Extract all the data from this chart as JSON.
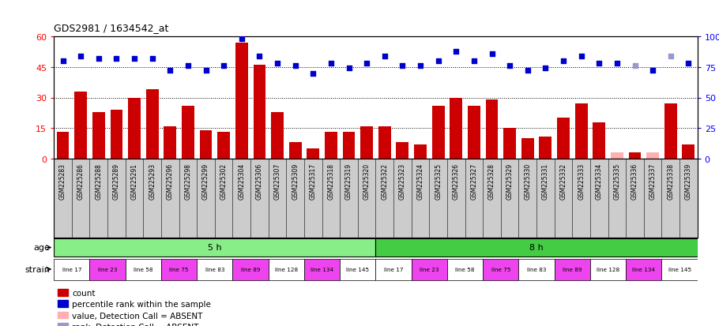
{
  "title": "GDS2981 / 1634542_at",
  "samples": [
    "GSM225283",
    "GSM225286",
    "GSM225288",
    "GSM225289",
    "GSM225291",
    "GSM225293",
    "GSM225296",
    "GSM225298",
    "GSM225299",
    "GSM225302",
    "GSM225304",
    "GSM225306",
    "GSM225307",
    "GSM225309",
    "GSM225317",
    "GSM225318",
    "GSM225319",
    "GSM225320",
    "GSM225322",
    "GSM225323",
    "GSM225324",
    "GSM225325",
    "GSM225326",
    "GSM225327",
    "GSM225328",
    "GSM225329",
    "GSM225330",
    "GSM225331",
    "GSM225332",
    "GSM225333",
    "GSM225334",
    "GSM225335",
    "GSM225336",
    "GSM225337",
    "GSM225338",
    "GSM225339"
  ],
  "counts": [
    13,
    33,
    23,
    24,
    30,
    34,
    16,
    26,
    14,
    13,
    57,
    46,
    23,
    8,
    5,
    13,
    13,
    16,
    16,
    8,
    7,
    26,
    30,
    26,
    29,
    15,
    10,
    11,
    20,
    27,
    18,
    3,
    3,
    3,
    27,
    7
  ],
  "absent_count": [
    false,
    false,
    false,
    false,
    false,
    false,
    false,
    false,
    false,
    false,
    false,
    false,
    false,
    false,
    false,
    false,
    false,
    false,
    false,
    false,
    false,
    false,
    false,
    false,
    false,
    false,
    false,
    false,
    false,
    false,
    false,
    true,
    false,
    true,
    false,
    false
  ],
  "percentile_ranks": [
    80,
    84,
    82,
    82,
    82,
    82,
    72,
    76,
    72,
    76,
    98,
    84,
    78,
    76,
    70,
    78,
    74,
    78,
    84,
    76,
    76,
    80,
    88,
    80,
    86,
    76,
    72,
    74,
    80,
    84,
    78,
    78,
    76,
    72,
    84,
    78
  ],
  "absent_rank": [
    false,
    false,
    false,
    false,
    false,
    false,
    false,
    false,
    false,
    false,
    false,
    false,
    false,
    false,
    false,
    false,
    false,
    false,
    false,
    false,
    false,
    false,
    false,
    false,
    false,
    false,
    false,
    false,
    false,
    false,
    false,
    false,
    true,
    false,
    true,
    false
  ],
  "strain_groups": [
    {
      "label": "line 17",
      "start": 0,
      "end": 2,
      "color": "#ffffff"
    },
    {
      "label": "line 23",
      "start": 2,
      "end": 4,
      "color": "#EE44EE"
    },
    {
      "label": "line 58",
      "start": 4,
      "end": 6,
      "color": "#ffffff"
    },
    {
      "label": "line 75",
      "start": 6,
      "end": 8,
      "color": "#EE44EE"
    },
    {
      "label": "line 83",
      "start": 8,
      "end": 10,
      "color": "#ffffff"
    },
    {
      "label": "line 89",
      "start": 10,
      "end": 12,
      "color": "#EE44EE"
    },
    {
      "label": "line 128",
      "start": 12,
      "end": 14,
      "color": "#ffffff"
    },
    {
      "label": "line 134",
      "start": 14,
      "end": 16,
      "color": "#EE44EE"
    },
    {
      "label": "line 145",
      "start": 16,
      "end": 18,
      "color": "#ffffff"
    },
    {
      "label": "line 17",
      "start": 18,
      "end": 20,
      "color": "#ffffff"
    },
    {
      "label": "line 23",
      "start": 20,
      "end": 22,
      "color": "#EE44EE"
    },
    {
      "label": "line 58",
      "start": 22,
      "end": 24,
      "color": "#ffffff"
    },
    {
      "label": "line 75",
      "start": 24,
      "end": 26,
      "color": "#EE44EE"
    },
    {
      "label": "line 83",
      "start": 26,
      "end": 28,
      "color": "#ffffff"
    },
    {
      "label": "line 89",
      "start": 28,
      "end": 30,
      "color": "#EE44EE"
    },
    {
      "label": "line 128",
      "start": 30,
      "end": 32,
      "color": "#ffffff"
    },
    {
      "label": "line 134",
      "start": 32,
      "end": 34,
      "color": "#EE44EE"
    },
    {
      "label": "line 145",
      "start": 34,
      "end": 36,
      "color": "#ffffff"
    }
  ],
  "ylim_left": [
    0,
    60
  ],
  "ylim_right": [
    0,
    100
  ],
  "yticks_left": [
    0,
    15,
    30,
    45,
    60
  ],
  "yticks_right": [
    0,
    25,
    50,
    75,
    100
  ],
  "bar_color": "#CC0000",
  "absent_bar_color": "#FFB0B0",
  "dot_color": "#0000CC",
  "absent_dot_color": "#9999CC",
  "age_color_5h": "#88DD88",
  "age_color_8h": "#44CC44",
  "sample_box_color": "#CCCCCC",
  "legend_items": [
    {
      "label": "count",
      "color": "#CC0000"
    },
    {
      "label": "percentile rank within the sample",
      "color": "#0000CC"
    },
    {
      "label": "value, Detection Call = ABSENT",
      "color": "#FFB0B0"
    },
    {
      "label": "rank, Detection Call = ABSENT",
      "color": "#9999CC"
    }
  ]
}
